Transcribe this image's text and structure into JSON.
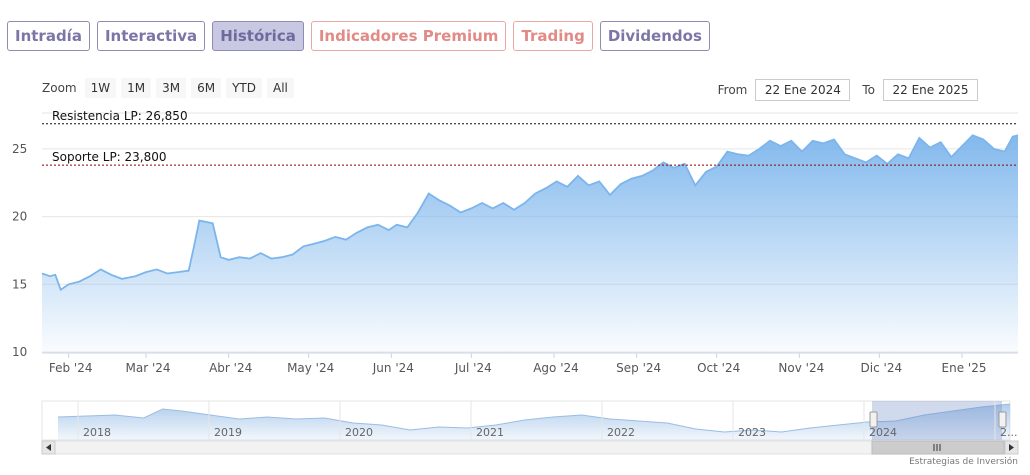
{
  "tabs": [
    {
      "label": "Intradía",
      "tone": "purple",
      "active": false
    },
    {
      "label": "Interactiva",
      "tone": "purple",
      "active": false
    },
    {
      "label": "Histórica",
      "tone": "purple",
      "active": true
    },
    {
      "label": "Indicadores Premium",
      "tone": "red",
      "active": false
    },
    {
      "label": "Trading",
      "tone": "red",
      "active": false
    },
    {
      "label": "Dividendos",
      "tone": "purple",
      "active": false
    }
  ],
  "zoom": {
    "label": "Zoom",
    "buttons": [
      "1W",
      "1M",
      "3M",
      "6M",
      "YTD",
      "All"
    ]
  },
  "range": {
    "from_label": "From",
    "from_value": "22 Ene 2024",
    "to_label": "To",
    "to_value": "22 Ene 2025"
  },
  "credit": "Estrategias de Inversión",
  "colors": {
    "line": "#7cb5ec",
    "fill_top": "#7cb5ec",
    "resistance": "#111111",
    "support": "#8b0000"
  },
  "chart_data": {
    "type": "area",
    "x_start": "2024-01-22",
    "x_end": "2025-01-22",
    "ylim": [
      10,
      27.5
    ],
    "y_ticks": [
      10,
      15,
      20,
      25
    ],
    "x_ticks": [
      {
        "label": "Feb '24",
        "date": "2024-02-01"
      },
      {
        "label": "Mar '24",
        "date": "2024-03-01"
      },
      {
        "label": "Abr '24",
        "date": "2024-04-01"
      },
      {
        "label": "May '24",
        "date": "2024-05-01"
      },
      {
        "label": "Jun '24",
        "date": "2024-06-01"
      },
      {
        "label": "Jul '24",
        "date": "2024-07-01"
      },
      {
        "label": "Ago '24",
        "date": "2024-08-01"
      },
      {
        "label": "Sep '24",
        "date": "2024-09-01"
      },
      {
        "label": "Oct '24",
        "date": "2024-10-01"
      },
      {
        "label": "Nov '24",
        "date": "2024-11-01"
      },
      {
        "label": "Dic '24",
        "date": "2024-12-01"
      },
      {
        "label": "Ene '25",
        "date": "2025-01-01"
      }
    ],
    "series": [
      {
        "points": [
          [
            "2024-01-22",
            15.8
          ],
          [
            "2024-01-25",
            15.6
          ],
          [
            "2024-01-27",
            15.7
          ],
          [
            "2024-01-29",
            14.6
          ],
          [
            "2024-02-01",
            15.0
          ],
          [
            "2024-02-05",
            15.2
          ],
          [
            "2024-02-09",
            15.6
          ],
          [
            "2024-02-13",
            16.1
          ],
          [
            "2024-02-17",
            15.7
          ],
          [
            "2024-02-21",
            15.4
          ],
          [
            "2024-02-26",
            15.6
          ],
          [
            "2024-03-01",
            15.9
          ],
          [
            "2024-03-05",
            16.1
          ],
          [
            "2024-03-09",
            15.8
          ],
          [
            "2024-03-13",
            15.9
          ],
          [
            "2024-03-17",
            16.0
          ],
          [
            "2024-03-19",
            17.8
          ],
          [
            "2024-03-21",
            19.7
          ],
          [
            "2024-03-26",
            19.5
          ],
          [
            "2024-03-29",
            17.0
          ],
          [
            "2024-04-01",
            16.8
          ],
          [
            "2024-04-05",
            17.0
          ],
          [
            "2024-04-09",
            16.9
          ],
          [
            "2024-04-13",
            17.3
          ],
          [
            "2024-04-17",
            16.9
          ],
          [
            "2024-04-21",
            17.0
          ],
          [
            "2024-04-25",
            17.2
          ],
          [
            "2024-04-29",
            17.8
          ],
          [
            "2024-05-03",
            18.0
          ],
          [
            "2024-05-07",
            18.2
          ],
          [
            "2024-05-11",
            18.5
          ],
          [
            "2024-05-15",
            18.3
          ],
          [
            "2024-05-19",
            18.8
          ],
          [
            "2024-05-23",
            19.2
          ],
          [
            "2024-05-27",
            19.4
          ],
          [
            "2024-05-31",
            19.0
          ],
          [
            "2024-06-03",
            19.4
          ],
          [
            "2024-06-07",
            19.2
          ],
          [
            "2024-06-11",
            20.3
          ],
          [
            "2024-06-15",
            21.7
          ],
          [
            "2024-06-19",
            21.2
          ],
          [
            "2024-06-23",
            20.8
          ],
          [
            "2024-06-27",
            20.3
          ],
          [
            "2024-07-01",
            20.6
          ],
          [
            "2024-07-05",
            21.0
          ],
          [
            "2024-07-09",
            20.6
          ],
          [
            "2024-07-13",
            21.0
          ],
          [
            "2024-07-17",
            20.5
          ],
          [
            "2024-07-21",
            21.0
          ],
          [
            "2024-07-25",
            21.7
          ],
          [
            "2024-07-29",
            22.1
          ],
          [
            "2024-08-02",
            22.6
          ],
          [
            "2024-08-06",
            22.2
          ],
          [
            "2024-08-10",
            23.0
          ],
          [
            "2024-08-14",
            22.3
          ],
          [
            "2024-08-18",
            22.6
          ],
          [
            "2024-08-22",
            21.6
          ],
          [
            "2024-08-26",
            22.4
          ],
          [
            "2024-08-30",
            22.8
          ],
          [
            "2024-09-03",
            23.0
          ],
          [
            "2024-09-07",
            23.4
          ],
          [
            "2024-09-11",
            24.0
          ],
          [
            "2024-09-15",
            23.6
          ],
          [
            "2024-09-19",
            23.9
          ],
          [
            "2024-09-23",
            22.3
          ],
          [
            "2024-09-27",
            23.3
          ],
          [
            "2024-10-01",
            23.7
          ],
          [
            "2024-10-05",
            24.8
          ],
          [
            "2024-10-09",
            24.6
          ],
          [
            "2024-10-13",
            24.5
          ],
          [
            "2024-10-17",
            25.0
          ],
          [
            "2024-10-21",
            25.6
          ],
          [
            "2024-10-25",
            25.2
          ],
          [
            "2024-10-29",
            25.6
          ],
          [
            "2024-11-02",
            24.8
          ],
          [
            "2024-11-06",
            25.6
          ],
          [
            "2024-11-10",
            25.4
          ],
          [
            "2024-11-14",
            25.7
          ],
          [
            "2024-11-18",
            24.6
          ],
          [
            "2024-11-22",
            24.3
          ],
          [
            "2024-11-26",
            24.0
          ],
          [
            "2024-11-30",
            24.5
          ],
          [
            "2024-12-04",
            23.9
          ],
          [
            "2024-12-08",
            24.6
          ],
          [
            "2024-12-12",
            24.3
          ],
          [
            "2024-12-16",
            25.8
          ],
          [
            "2024-12-20",
            25.1
          ],
          [
            "2024-12-24",
            25.5
          ],
          [
            "2024-12-28",
            24.4
          ],
          [
            "2025-01-01",
            25.2
          ],
          [
            "2025-01-05",
            26.0
          ],
          [
            "2025-01-09",
            25.7
          ],
          [
            "2025-01-13",
            25.0
          ],
          [
            "2025-01-17",
            24.8
          ],
          [
            "2025-01-20",
            25.9
          ],
          [
            "2025-01-22",
            26.0
          ]
        ]
      }
    ],
    "annotations": [
      {
        "label": "Resistencia LP: 26,850",
        "y": 26.85,
        "kind": "resistance"
      },
      {
        "label": "Soporte LP: 23,800",
        "y": 23.8,
        "kind": "support"
      }
    ],
    "navigator": {
      "year_labels": [
        "2018",
        "2019",
        "2020",
        "2021",
        "2022",
        "2023",
        "2024",
        "2..."
      ]
    }
  }
}
